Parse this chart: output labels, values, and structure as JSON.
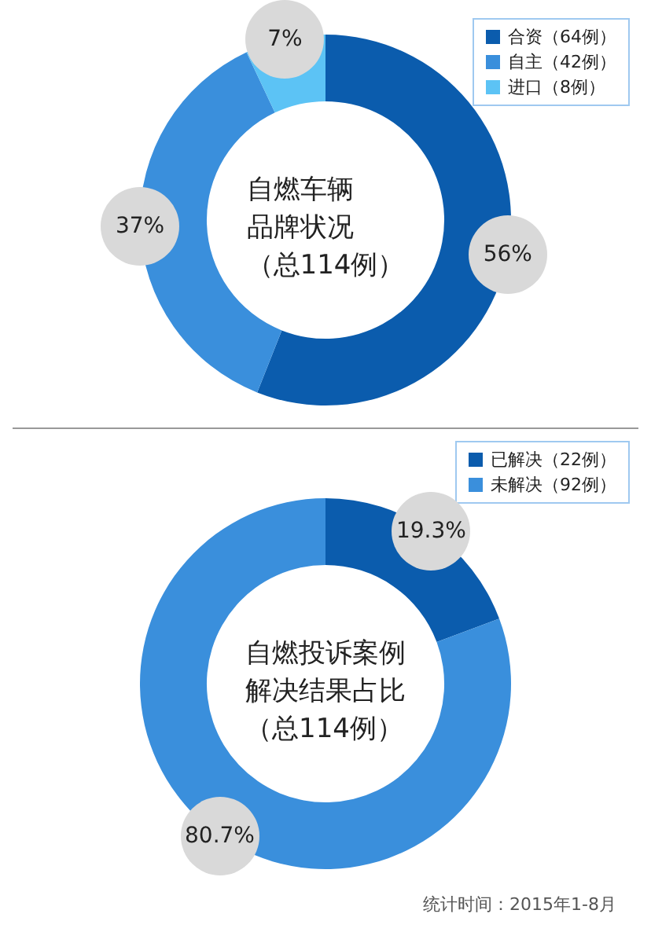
{
  "chart_data": [
    {
      "type": "donut",
      "title": "自燃车辆品牌状况（总114例）",
      "categories": [
        "合资（64例）",
        "自主（42例）",
        "进口（8例）"
      ],
      "values": [
        56,
        37,
        7
      ],
      "value_labels": [
        "56%",
        "37%",
        "7%"
      ],
      "colors": [
        "#0b5cad",
        "#3a8fdc",
        "#5cc3f5"
      ],
      "legend": "top right"
    },
    {
      "type": "donut",
      "title": "自燃投诉案例解决结果占比（总114例）",
      "categories": [
        "已解决（22例）",
        "未解决（92例）"
      ],
      "values": [
        19.3,
        80.7
      ],
      "value_labels": [
        "19.3%",
        "80.7%"
      ],
      "colors": [
        "#0b5cad",
        "#3a8fdc"
      ],
      "legend": "top right",
      "annotations": [
        "统计时间：2015年1-8月"
      ]
    }
  ]
}
